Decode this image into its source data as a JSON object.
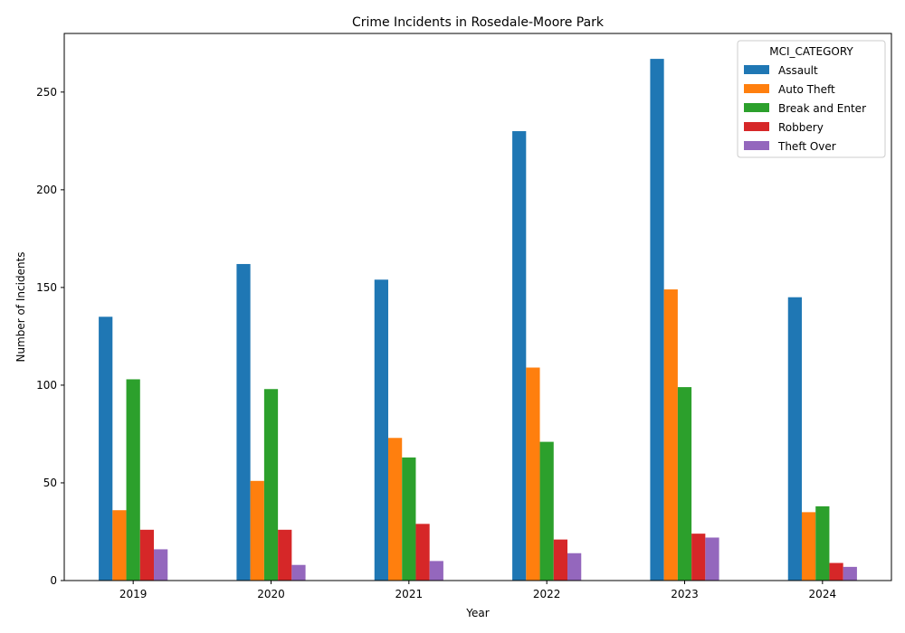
{
  "chart_data": {
    "type": "bar",
    "title": "Crime Incidents in Rosedale-Moore Park",
    "xlabel": "Year",
    "ylabel": "Number of Incidents",
    "ylim": [
      0,
      280
    ],
    "yticks": [
      0,
      50,
      100,
      150,
      200,
      250
    ],
    "grid": false,
    "legend": {
      "title": "MCI_CATEGORY",
      "placement": "top-right"
    },
    "categories": [
      "2019",
      "2020",
      "2021",
      "2022",
      "2023",
      "2024"
    ],
    "series": [
      {
        "name": "Assault",
        "color": "#1f77b4",
        "values": [
          135,
          162,
          154,
          230,
          267,
          145
        ]
      },
      {
        "name": "Auto Theft",
        "color": "#ff7f0e",
        "values": [
          36,
          51,
          73,
          109,
          149,
          35
        ]
      },
      {
        "name": "Break and Enter",
        "color": "#2ca02c",
        "values": [
          103,
          98,
          63,
          71,
          99,
          38
        ]
      },
      {
        "name": "Robbery",
        "color": "#d62728",
        "values": [
          26,
          26,
          29,
          21,
          24,
          9
        ]
      },
      {
        "name": "Theft Over",
        "color": "#9467bd",
        "values": [
          16,
          8,
          10,
          14,
          22,
          7
        ]
      }
    ]
  }
}
